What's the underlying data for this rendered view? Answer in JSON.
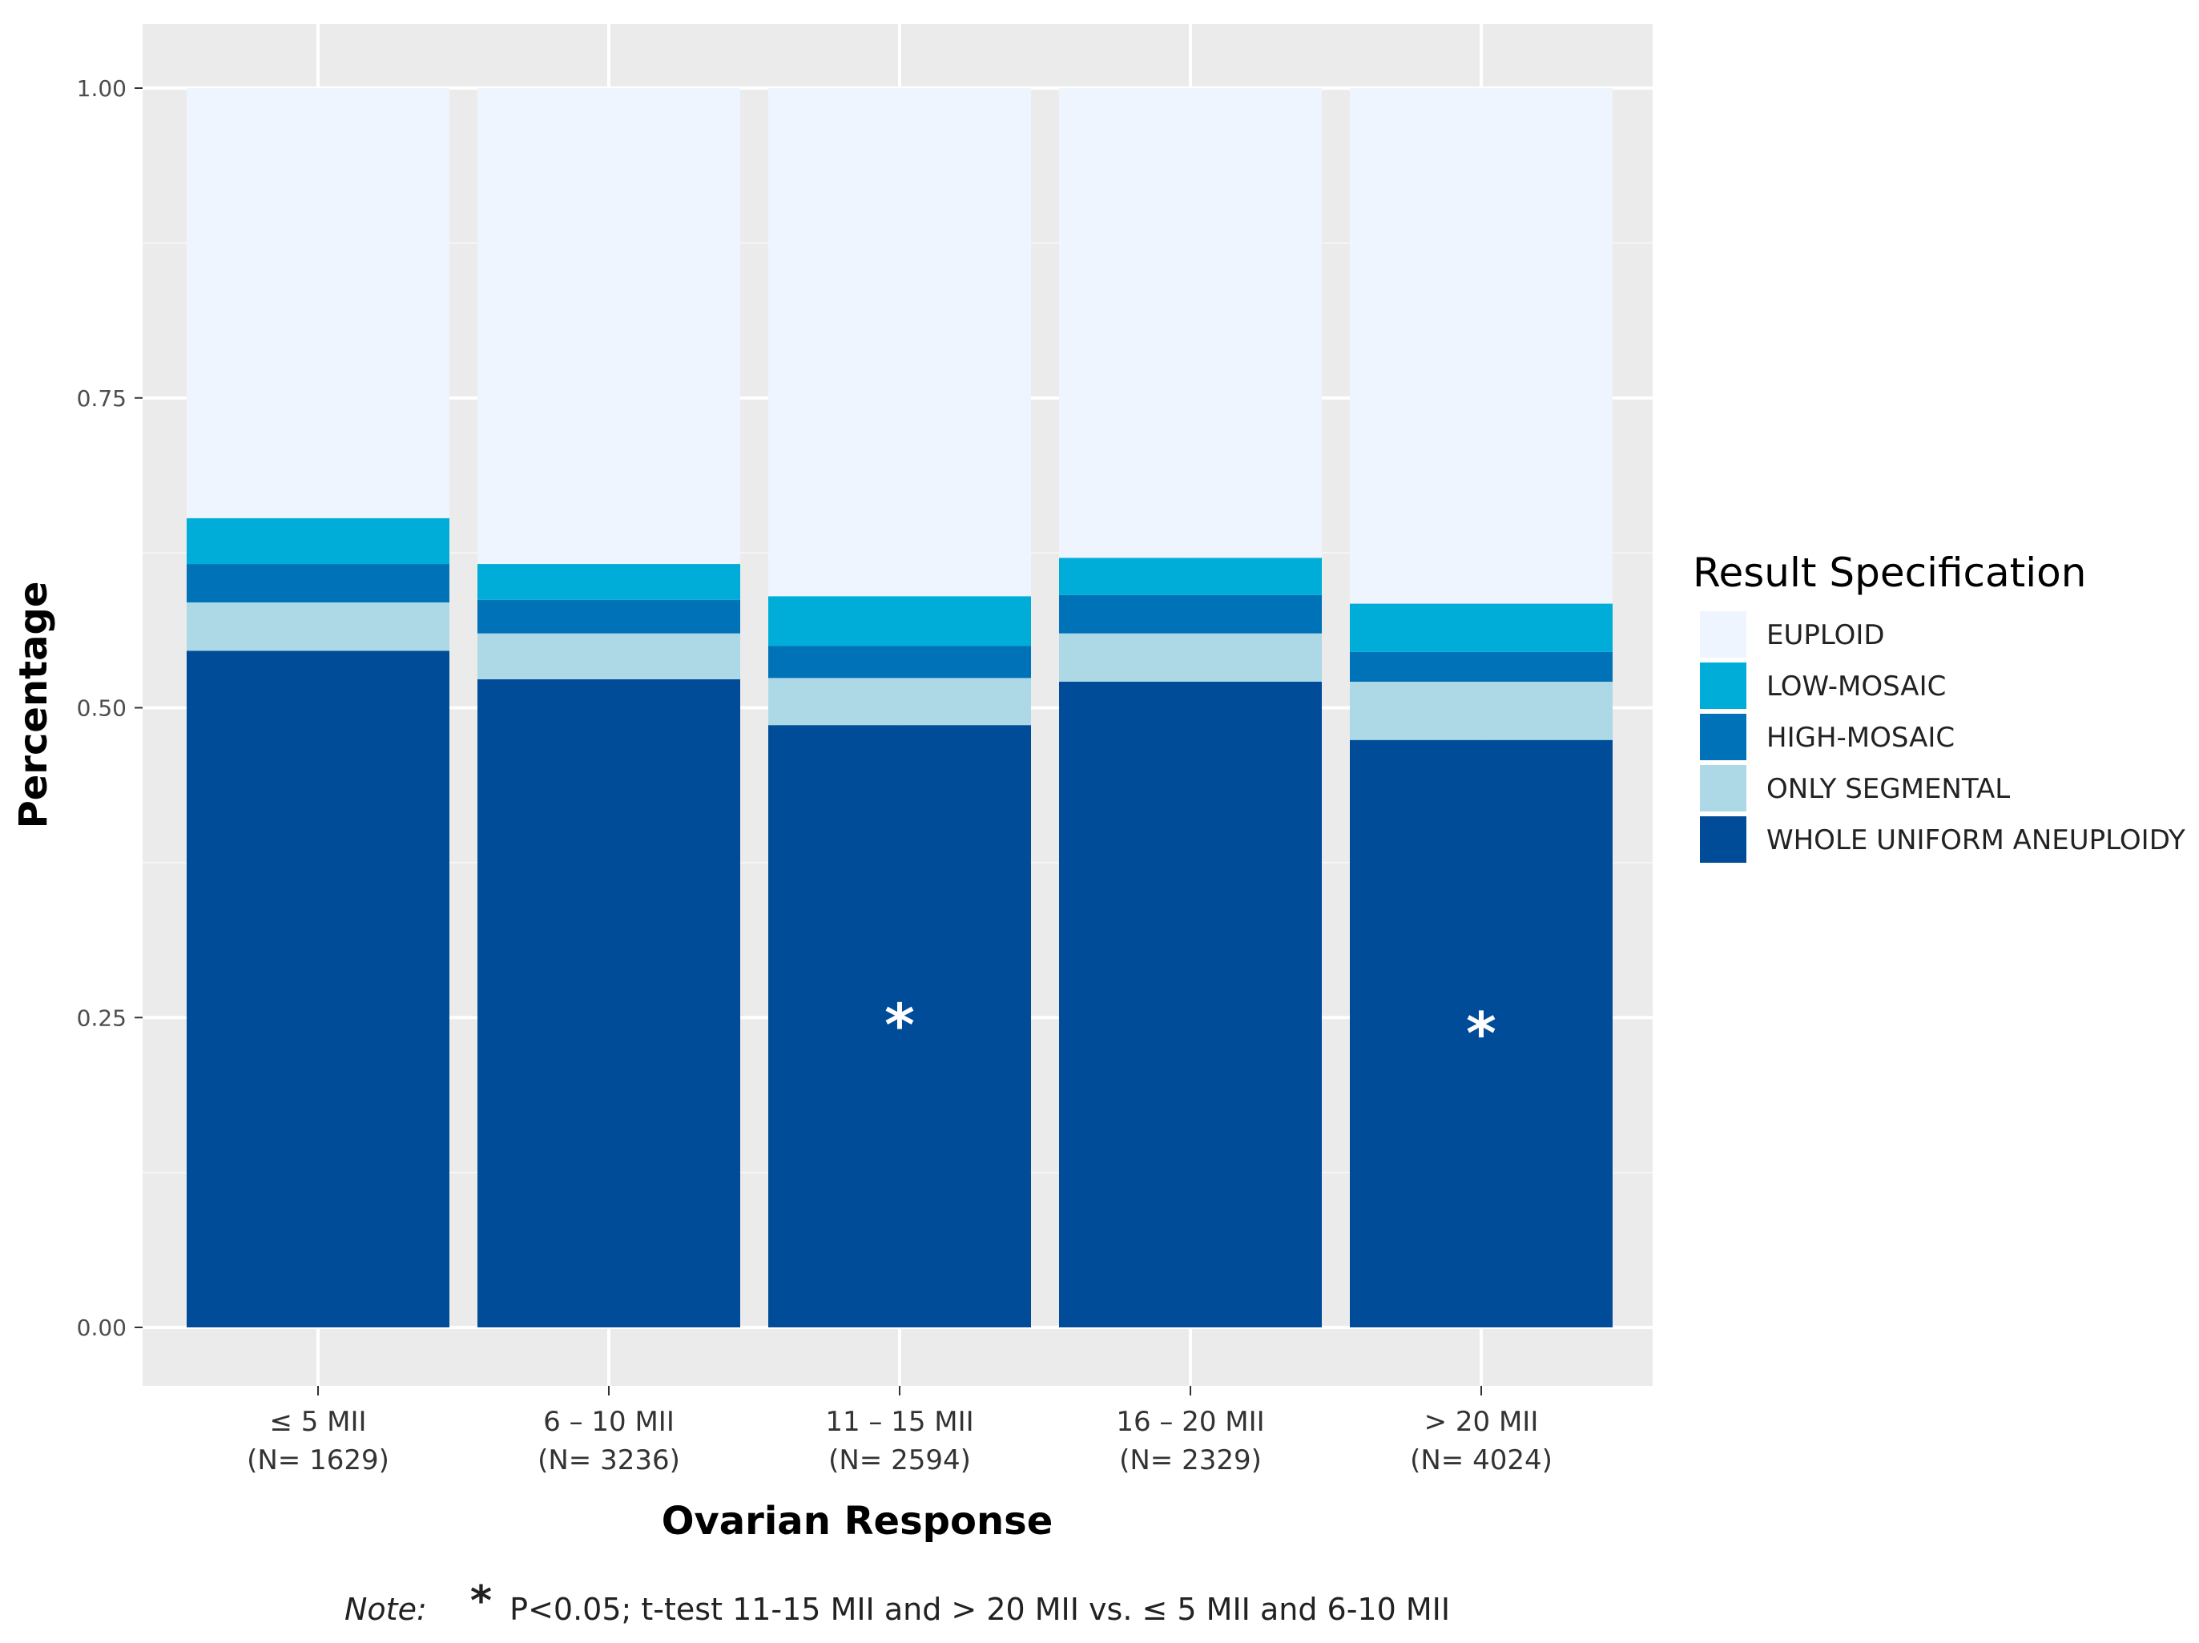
{
  "chart_data": {
    "type": "bar",
    "stacked": true,
    "xlabel": "Ovarian Response",
    "ylabel": "Percentage",
    "ylim": [
      0,
      1.05
    ],
    "yticks": [
      "0.00",
      "0.25",
      "0.50",
      "0.75",
      "1.00"
    ],
    "grid": true,
    "legend_position": "right",
    "legend_title": "Result Specification",
    "categories": [
      {
        "label": "≤ 5 MII",
        "n": "(N= 1629)"
      },
      {
        "label": "6 – 10 MII",
        "n": "(N= 3236)"
      },
      {
        "label": "11 – 15 MII",
        "n": "(N= 2594)"
      },
      {
        "label": "16 – 20 MII",
        "n": "(N= 2329)"
      },
      {
        "label": "> 20 MII",
        "n": "(N= 4024)"
      }
    ],
    "series": [
      {
        "name": "WHOLE UNIFORM ANEUPLOIDY",
        "color": "#004c99",
        "values": [
          0.546,
          0.523,
          0.486,
          0.521,
          0.474
        ]
      },
      {
        "name": "ONLY SEGMENTAL",
        "color": "#add8e6",
        "values": [
          0.039,
          0.037,
          0.038,
          0.039,
          0.047
        ]
      },
      {
        "name": "HIGH-MOSAIC",
        "color": "#0072b8",
        "values": [
          0.031,
          0.027,
          0.026,
          0.031,
          0.024
        ]
      },
      {
        "name": "LOW-MOSAIC",
        "color": "#00add8",
        "values": [
          0.037,
          0.029,
          0.04,
          0.03,
          0.039
        ]
      },
      {
        "name": "EUPLOID",
        "color": "#eef5ff",
        "values": [
          0.347,
          0.384,
          0.41,
          0.379,
          0.416
        ]
      }
    ],
    "legend_order": [
      "EUPLOID",
      "LOW-MOSAIC",
      "HIGH-MOSAIC",
      "ONLY SEGMENTAL",
      "WHOLE UNIFORM ANEUPLOIDY"
    ],
    "annotations": [
      {
        "category_index": 2,
        "y": 0.25,
        "text": "*"
      },
      {
        "category_index": 4,
        "y": 0.243,
        "text": "*"
      }
    ]
  },
  "note": {
    "label": "Note:",
    "symbol": "*",
    "text": "P<0.05; t-test 11-15 MII and > 20 MII vs. ≤ 5 MII and 6-10 MII"
  }
}
